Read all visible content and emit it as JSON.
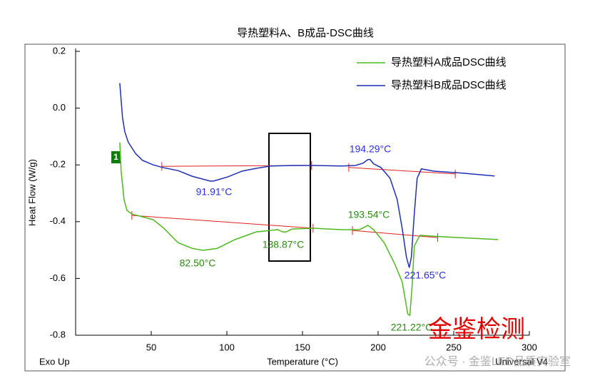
{
  "chart_data": {
    "type": "line",
    "title": "导热塑料A、B成品-DSC曲线",
    "x_label": "Temperature (°C)",
    "y_label": "Heat Flow (W/g)",
    "xlim": [
      0,
      300
    ],
    "xticks": [
      50,
      100,
      150,
      200,
      250,
      300
    ],
    "ylim": [
      -0.8,
      0.2
    ],
    "yticks": [
      -0.8,
      -0.6,
      -0.4,
      -0.2,
      {
        "value": 0,
        "label": "0.0"
      },
      0.2
    ],
    "legend": "upper right",
    "curve_marker": "1",
    "corner_left": "Exo Up",
    "corner_right": "Universal V4",
    "watermark": "金鉴检测",
    "watermark_caption": "公众号 · 金鉴LED品质实验室",
    "series": [
      {
        "name": "导热塑料A成品DSC曲线",
        "color": "#4fb81e",
        "label_color": "#2a8a10",
        "x": [
          29.2,
          30.1,
          32,
          33.9,
          37.2,
          44.2,
          51.3,
          58.3,
          67.7,
          77,
          84.2,
          93.6,
          105.4,
          119.5,
          133.6,
          136.9,
          139.2,
          143,
          157,
          176,
          187.7,
          193.3,
          197,
          204,
          211,
          215.9,
          219.6,
          221,
          222.5,
          223.9,
          227.6,
          241.8,
          260.6,
          279.4
        ],
        "values": [
          -0.121,
          -0.222,
          -0.322,
          -0.36,
          -0.373,
          -0.383,
          -0.393,
          -0.423,
          -0.474,
          -0.494,
          -0.501,
          -0.494,
          -0.463,
          -0.436,
          -0.428,
          -0.436,
          -0.436,
          -0.426,
          -0.423,
          -0.428,
          -0.428,
          -0.413,
          -0.428,
          -0.474,
          -0.549,
          -0.612,
          -0.725,
          -0.73,
          -0.624,
          -0.486,
          -0.448,
          -0.453,
          -0.458,
          -0.463
        ],
        "peak_labels": [
          "82.50°C",
          "138.87°C",
          "193.54°C",
          "221.22°C"
        ],
        "baselines": [
          {
            "x": [
              37.2,
              157
            ],
            "y": [
              -0.378,
              -0.423
            ]
          },
          {
            "x": [
              183,
              239.4
            ],
            "y": [
              -0.431,
              -0.456
            ]
          }
        ]
      },
      {
        "name": "导热塑料B成品DSC曲线",
        "color": "#1f2fb4",
        "label_color": "#2a2ee0",
        "x": [
          29.2,
          31,
          32.5,
          34.8,
          39.5,
          44.2,
          51.3,
          58.3,
          67.7,
          77,
          88.9,
          91.2,
          100.7,
          110,
          119.5,
          128.9,
          143,
          157,
          176,
          185,
          190,
          193.3,
          194.7,
          197,
          201.8,
          207.9,
          212.6,
          215.9,
          218.7,
          220.6,
          222,
          223.9,
          225.8,
          228.6,
          237,
          255.9,
          277
        ],
        "values": [
          0.088,
          -0.033,
          -0.083,
          -0.12,
          -0.159,
          -0.184,
          -0.2,
          -0.21,
          -0.22,
          -0.24,
          -0.257,
          -0.257,
          -0.242,
          -0.222,
          -0.212,
          -0.204,
          -0.202,
          -0.202,
          -0.204,
          -0.202,
          -0.194,
          -0.181,
          -0.181,
          -0.196,
          -0.209,
          -0.247,
          -0.322,
          -0.423,
          -0.524,
          -0.562,
          -0.524,
          -0.373,
          -0.247,
          -0.214,
          -0.222,
          -0.229,
          -0.239
        ],
        "peak_labels": [
          "91.91°C",
          "194.29°C",
          "221.65°C"
        ],
        "baselines": [
          {
            "x": [
              57,
              156
            ],
            "y": [
              -0.205,
              -0.202
            ]
          },
          {
            "x": [
              180.6,
              251
            ],
            "y": [
              -0.209,
              -0.232
            ]
          }
        ]
      }
    ]
  }
}
